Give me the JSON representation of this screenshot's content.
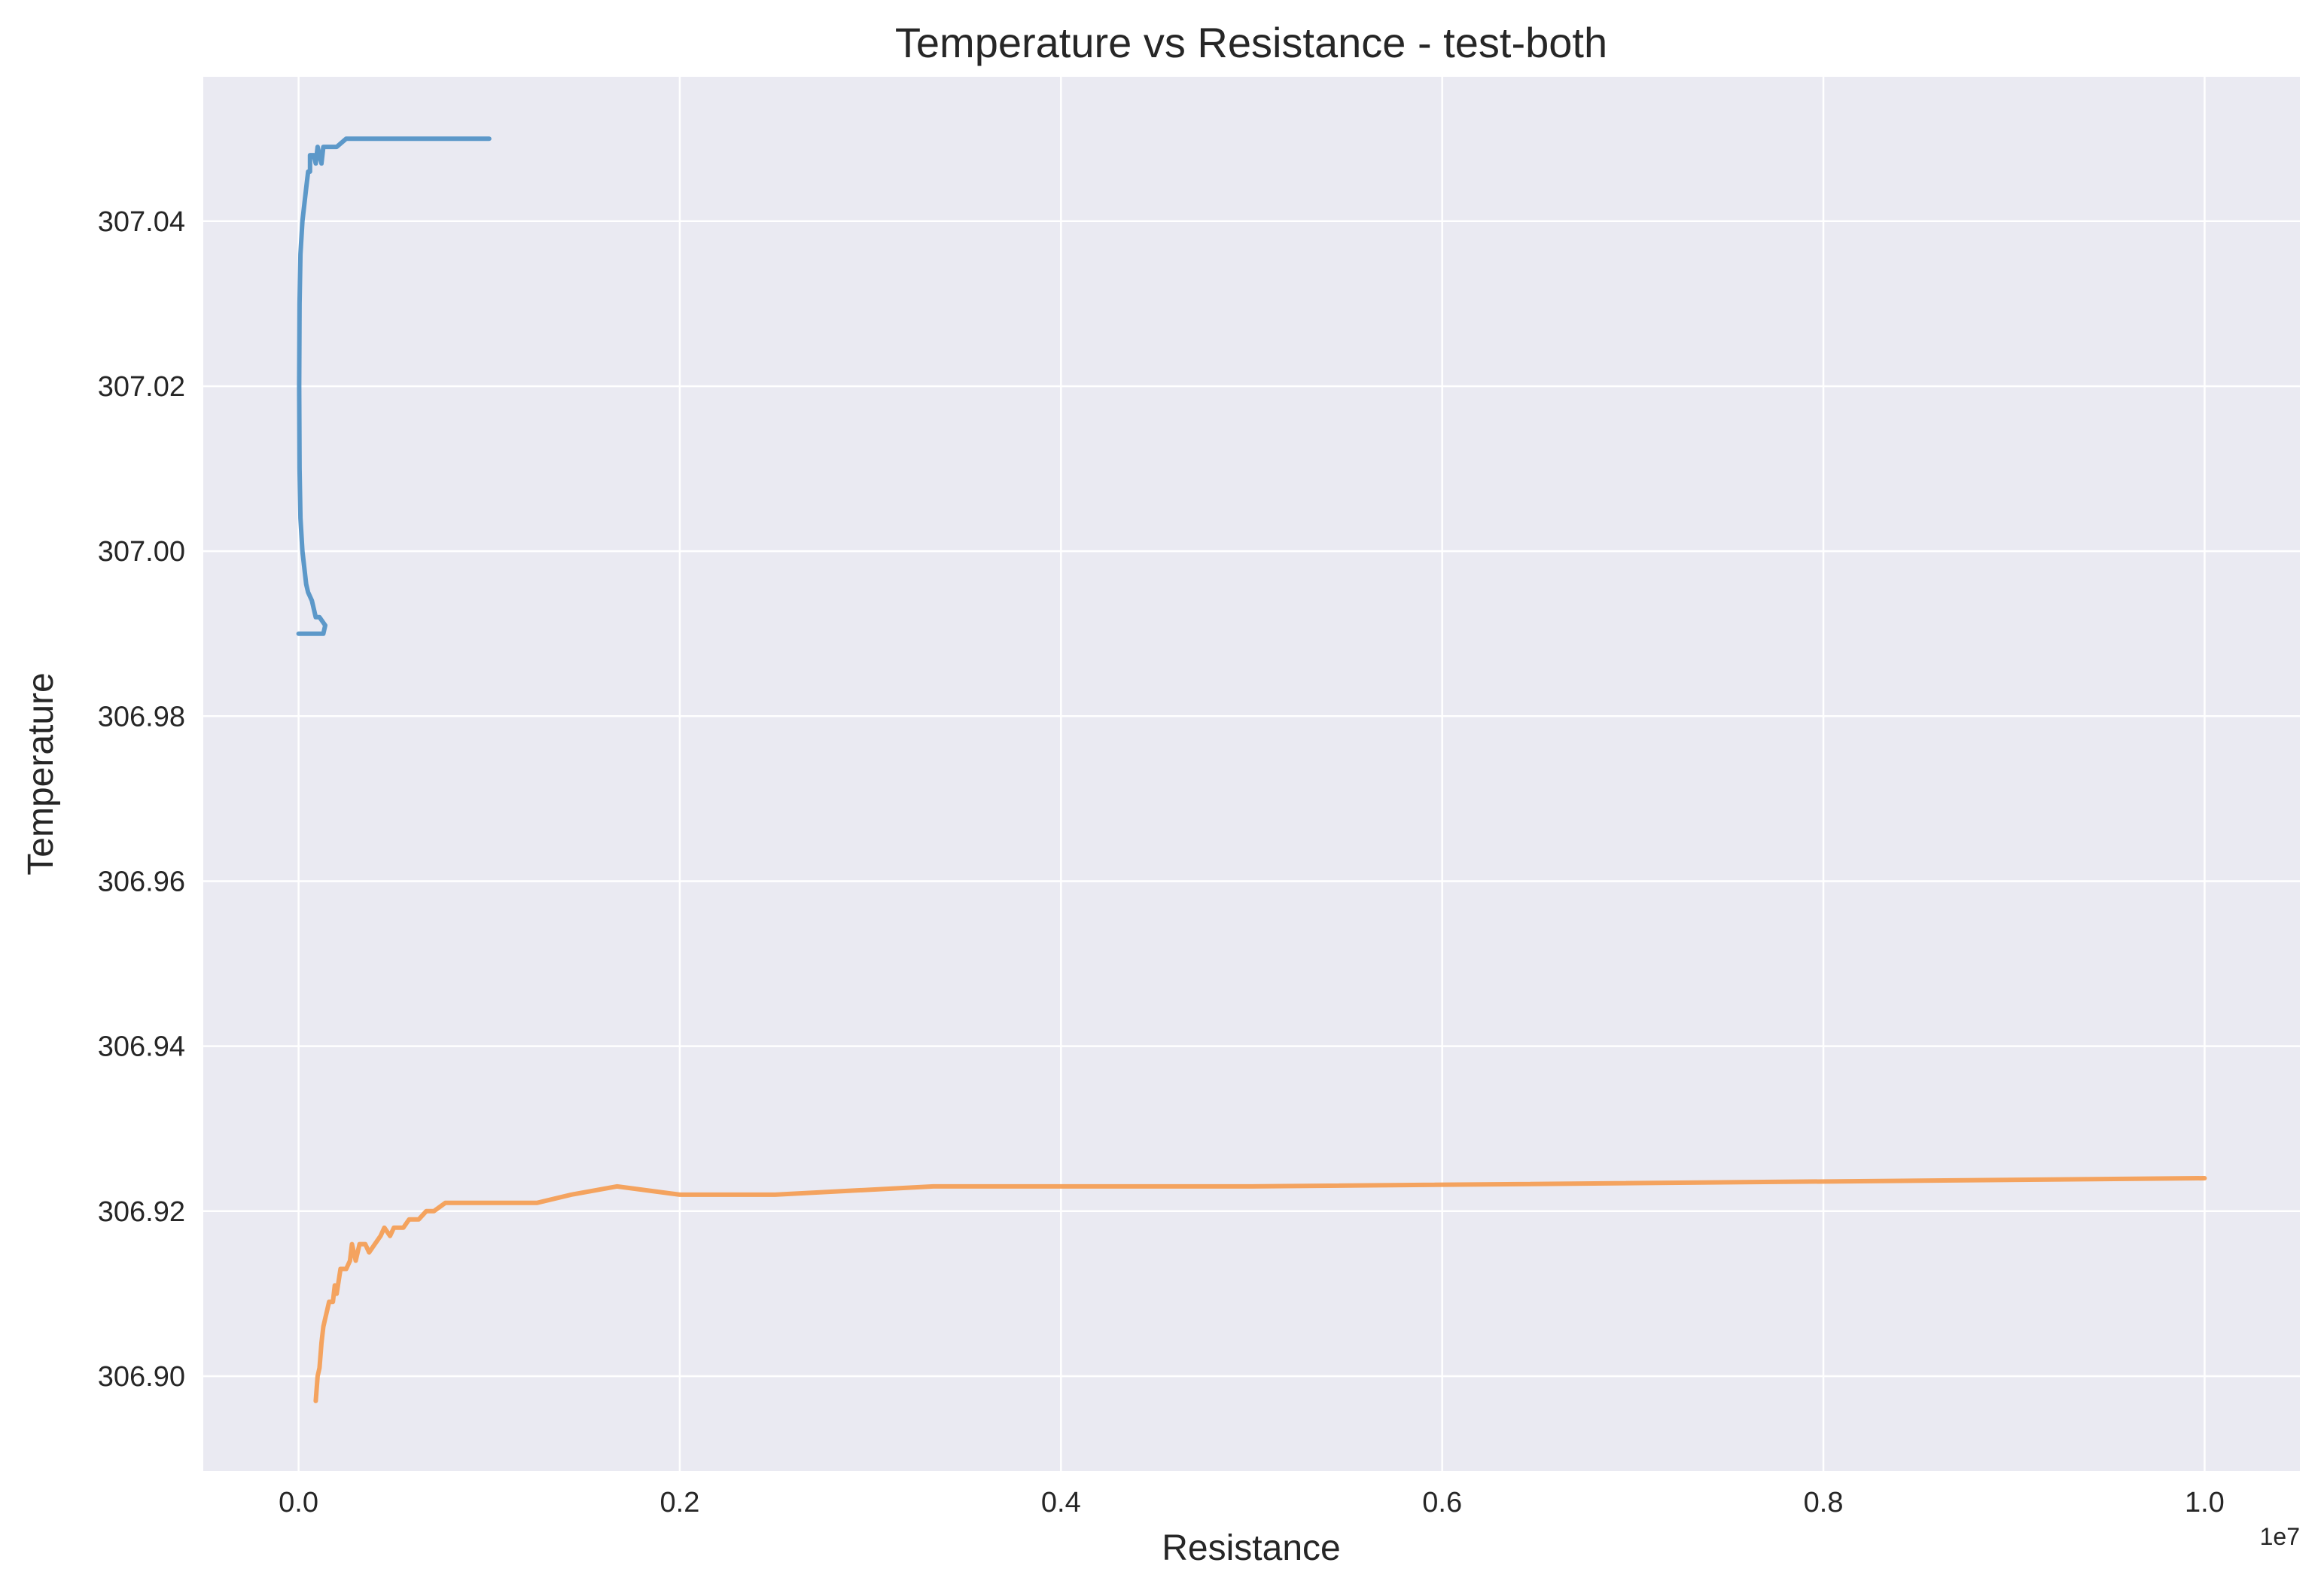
{
  "chart_data": {
    "type": "line",
    "title": "Temperature vs Resistance - test-both",
    "xlabel": "Resistance",
    "ylabel": "Temperature",
    "x_offset_label": "1e7",
    "xlim": [
      -0.05,
      1.05
    ],
    "ylim": [
      306.8885,
      307.0575
    ],
    "x_ticks": [
      0.0,
      0.2,
      0.4,
      0.6,
      0.8,
      1.0
    ],
    "x_tick_labels": [
      "0.0",
      "0.2",
      "0.4",
      "0.6",
      "0.8",
      "1.0"
    ],
    "y_ticks": [
      306.9,
      306.92,
      306.94,
      306.96,
      306.98,
      307.0,
      307.02,
      307.04
    ],
    "y_tick_labels": [
      "306.90",
      "306.92",
      "306.94",
      "306.96",
      "306.98",
      "307.00",
      "307.02",
      "307.04"
    ],
    "grid": true,
    "series": [
      {
        "color": "#4c8fc4",
        "points": [
          [
            0.0,
            306.99
          ],
          [
            0.01,
            306.99
          ],
          [
            0.013,
            306.99
          ],
          [
            0.014,
            306.991
          ],
          [
            0.011,
            306.992
          ],
          [
            0.009,
            306.992
          ],
          [
            0.007,
            306.994
          ],
          [
            0.005,
            306.995
          ],
          [
            0.004,
            306.996
          ],
          [
            0.003,
            306.998
          ],
          [
            0.002,
            307.0
          ],
          [
            0.001,
            307.004
          ],
          [
            0.0005,
            307.01
          ],
          [
            0.0003,
            307.02
          ],
          [
            0.0005,
            307.03
          ],
          [
            0.001,
            307.036
          ],
          [
            0.002,
            307.04
          ],
          [
            0.003,
            307.042
          ],
          [
            0.004,
            307.044
          ],
          [
            0.005,
            307.046
          ],
          [
            0.006,
            307.046
          ],
          [
            0.006,
            307.048
          ],
          [
            0.008,
            307.048
          ],
          [
            0.009,
            307.047
          ],
          [
            0.01,
            307.049
          ],
          [
            0.011,
            307.048
          ],
          [
            0.012,
            307.047
          ],
          [
            0.013,
            307.049
          ],
          [
            0.02,
            307.049
          ],
          [
            0.025,
            307.05
          ],
          [
            0.1,
            307.05
          ]
        ]
      },
      {
        "color": "#f59b4f",
        "points": [
          [
            0.009,
            306.897
          ],
          [
            0.01,
            306.9
          ],
          [
            0.011,
            306.901
          ],
          [
            0.012,
            306.904
          ],
          [
            0.013,
            306.906
          ],
          [
            0.014,
            306.907
          ],
          [
            0.015,
            306.908
          ],
          [
            0.016,
            306.909
          ],
          [
            0.018,
            306.909
          ],
          [
            0.019,
            306.911
          ],
          [
            0.02,
            306.91
          ],
          [
            0.022,
            306.913
          ],
          [
            0.025,
            306.913
          ],
          [
            0.027,
            306.914
          ],
          [
            0.028,
            306.916
          ],
          [
            0.03,
            306.914
          ],
          [
            0.032,
            306.916
          ],
          [
            0.035,
            306.916
          ],
          [
            0.037,
            306.915
          ],
          [
            0.04,
            306.916
          ],
          [
            0.043,
            306.917
          ],
          [
            0.045,
            306.918
          ],
          [
            0.048,
            306.917
          ],
          [
            0.05,
            306.918
          ],
          [
            0.055,
            306.918
          ],
          [
            0.058,
            306.919
          ],
          [
            0.063,
            306.919
          ],
          [
            0.067,
            306.92
          ],
          [
            0.071,
            306.92
          ],
          [
            0.077,
            306.921
          ],
          [
            0.1,
            306.921
          ],
          [
            0.125,
            306.921
          ],
          [
            0.143,
            306.922
          ],
          [
            0.167,
            306.923
          ],
          [
            0.2,
            306.922
          ],
          [
            0.25,
            306.922
          ],
          [
            0.333,
            306.923
          ],
          [
            0.5,
            306.923
          ],
          [
            1.0,
            306.924
          ]
        ]
      }
    ]
  }
}
